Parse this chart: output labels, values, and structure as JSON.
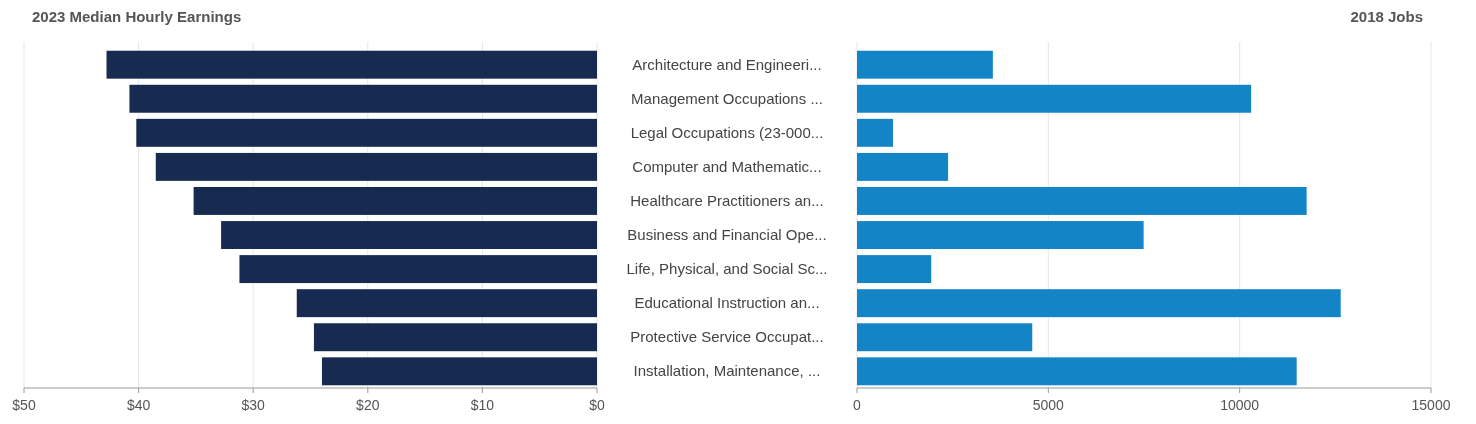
{
  "chart_data": [
    {
      "type": "bar",
      "orientation": "horizontal",
      "title": "2023 Median Hourly Earnings",
      "categories": [
        "Architecture and Engineeri...",
        "Management Occupations ...",
        "Legal Occupations (23-000...",
        "Computer and Mathematic...",
        "Healthcare Practitioners an...",
        "Business and Financial Ope...",
        "Life, Physical, and Social Sc...",
        "Educational Instruction an...",
        "Protective Service Occupat...",
        "Installation, Maintenance, ..."
      ],
      "values": [
        42.8,
        40.8,
        40.2,
        38.5,
        35.2,
        32.8,
        31.2,
        26.2,
        24.7,
        24.0
      ],
      "color": "#172a4f",
      "xlim": [
        50,
        0
      ],
      "xticks": [
        {
          "value": 50,
          "label": "$50"
        },
        {
          "value": 40,
          "label": "$40"
        },
        {
          "value": 30,
          "label": "$30"
        },
        {
          "value": 20,
          "label": "$20"
        },
        {
          "value": 10,
          "label": "$10"
        },
        {
          "value": 0,
          "label": "$0"
        }
      ],
      "grid": "x"
    },
    {
      "type": "bar",
      "orientation": "horizontal",
      "title": "2018 Jobs",
      "values": [
        3550,
        10300,
        940,
        2380,
        11750,
        7490,
        1940,
        12640,
        4580,
        11490
      ],
      "color": "#1384c6",
      "xlim": [
        0,
        15000
      ],
      "xticks": [
        0,
        5000,
        10000,
        15000
      ],
      "grid": "x",
      "tick_labels": "x"
    }
  ]
}
